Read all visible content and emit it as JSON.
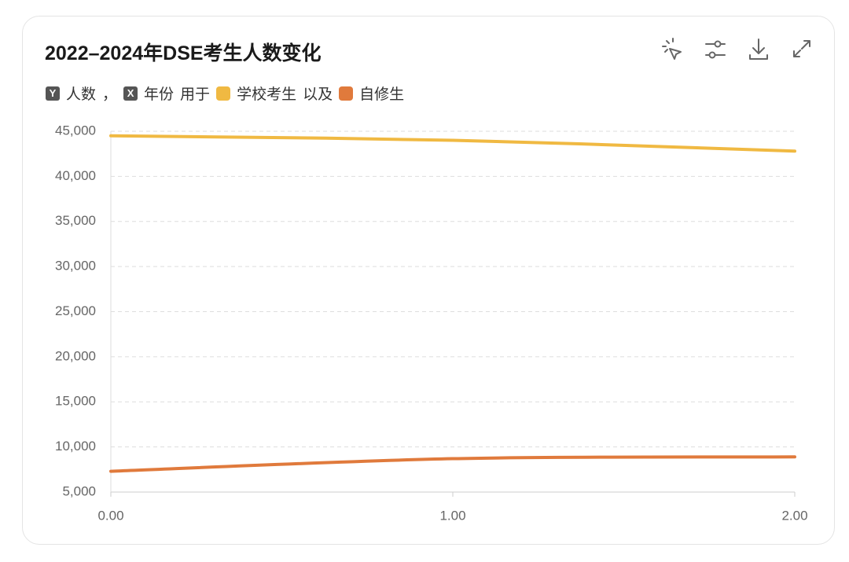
{
  "chart_data": {
    "type": "line",
    "title": "2022–2024年DSE考生人数变化",
    "y_axis_badge": "Y",
    "y_label": "人数",
    "x_axis_badge": "X",
    "x_label": "年份",
    "legend_connectors": [
      "，",
      "用于",
      "以及"
    ],
    "x": [
      0,
      1,
      2
    ],
    "series": [
      {
        "name": "学校考生",
        "color": "#f0b942",
        "values": [
          44500,
          44000,
          42800
        ]
      },
      {
        "name": "自修生",
        "color": "#e07a3c",
        "values": [
          7300,
          8700,
          8900
        ]
      }
    ],
    "xlim": [
      0,
      2
    ],
    "xticks": [
      {
        "value": 0,
        "label": "0.00"
      },
      {
        "value": 1,
        "label": "1.00"
      },
      {
        "value": 2,
        "label": "2.00"
      }
    ],
    "ylim": [
      5000,
      45000
    ],
    "yticks": [
      {
        "value": 5000,
        "label": "5,000"
      },
      {
        "value": 10000,
        "label": "10,000"
      },
      {
        "value": 15000,
        "label": "15,000"
      },
      {
        "value": 20000,
        "label": "20,000"
      },
      {
        "value": 25000,
        "label": "25,000"
      },
      {
        "value": 30000,
        "label": "30,000"
      },
      {
        "value": 35000,
        "label": "35,000"
      },
      {
        "value": 40000,
        "label": "40,000"
      },
      {
        "value": 45000,
        "label": "45,000"
      }
    ],
    "grid": true
  }
}
